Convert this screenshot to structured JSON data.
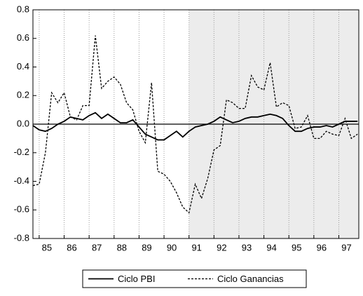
{
  "chart_data": {
    "type": "line",
    "x": [
      1984.75,
      1985,
      1985.25,
      1985.5,
      1985.75,
      1986,
      1986.25,
      1986.5,
      1986.75,
      1987,
      1987.25,
      1987.5,
      1987.75,
      1988,
      1988.25,
      1988.5,
      1988.75,
      1989,
      1989.25,
      1989.5,
      1989.75,
      1990,
      1990.25,
      1990.5,
      1990.75,
      1991,
      1991.25,
      1991.5,
      1991.75,
      1992,
      1992.25,
      1992.5,
      1992.75,
      1993,
      1993.25,
      1993.5,
      1993.75,
      1994,
      1994.25,
      1994.5,
      1994.75,
      1995,
      1995.25,
      1995.5,
      1995.75,
      1996,
      1996.25,
      1996.5,
      1996.75,
      1997,
      1997.25,
      1997.5,
      1997.75
    ],
    "series": [
      {
        "name": "Ciclo PBI",
        "color": "#000000",
        "dash": false,
        "values": [
          -0.01,
          -0.04,
          -0.05,
          -0.03,
          0.0,
          0.02,
          0.05,
          0.04,
          0.03,
          0.06,
          0.08,
          0.04,
          0.07,
          0.04,
          0.01,
          0.01,
          0.03,
          -0.02,
          -0.07,
          -0.09,
          -0.11,
          -0.11,
          -0.08,
          -0.05,
          -0.09,
          -0.05,
          -0.02,
          -0.01,
          0.0,
          0.02,
          0.05,
          0.03,
          0.01,
          0.02,
          0.04,
          0.05,
          0.05,
          0.06,
          0.07,
          0.06,
          0.04,
          -0.01,
          -0.05,
          -0.05,
          -0.03,
          -0.02,
          -0.02,
          -0.01,
          -0.02,
          0.0,
          0.02,
          0.02,
          0.02
        ]
      },
      {
        "name": "Ciclo Ganancias",
        "color": "#000000",
        "dash": true,
        "values": [
          -0.43,
          -0.42,
          -0.2,
          0.22,
          0.15,
          0.22,
          0.05,
          0.03,
          0.13,
          0.13,
          0.62,
          0.25,
          0.3,
          0.33,
          0.28,
          0.15,
          0.1,
          -0.05,
          -0.13,
          0.29,
          -0.33,
          -0.35,
          -0.4,
          -0.48,
          -0.58,
          -0.62,
          -0.42,
          -0.52,
          -0.38,
          -0.18,
          -0.15,
          0.17,
          0.15,
          0.11,
          0.11,
          0.34,
          0.26,
          0.24,
          0.43,
          0.12,
          0.15,
          0.13,
          -0.03,
          -0.02,
          0.06,
          -0.1,
          -0.1,
          -0.05,
          -0.07,
          -0.08,
          0.04,
          -0.1,
          -0.07
        ]
      }
    ],
    "xlim": [
      1984.75,
      1997.8
    ],
    "xticks": [
      {
        "value": 1985,
        "label": "85"
      },
      {
        "value": 1986,
        "label": "86"
      },
      {
        "value": 1987,
        "label": "87"
      },
      {
        "value": 1988,
        "label": "88"
      },
      {
        "value": 1989,
        "label": "89"
      },
      {
        "value": 1990,
        "label": "90"
      },
      {
        "value": 1991,
        "label": "91"
      },
      {
        "value": 1992,
        "label": "92"
      },
      {
        "value": 1993,
        "label": "93"
      },
      {
        "value": 1994,
        "label": "94"
      },
      {
        "value": 1995,
        "label": "95"
      },
      {
        "value": 1996,
        "label": "96"
      },
      {
        "value": 1997,
        "label": "97"
      }
    ],
    "ylim": [
      -0.8,
      0.8
    ],
    "yticks": [
      0.8,
      0.6,
      0.4,
      0.2,
      {
        "value": 0,
        "label": "0.0"
      },
      -0.2,
      -0.4,
      -0.6,
      -0.8
    ],
    "shaded_range": [
      1991,
      1997.8
    ],
    "grid": true,
    "zero_line": true,
    "legend": "bottom"
  }
}
